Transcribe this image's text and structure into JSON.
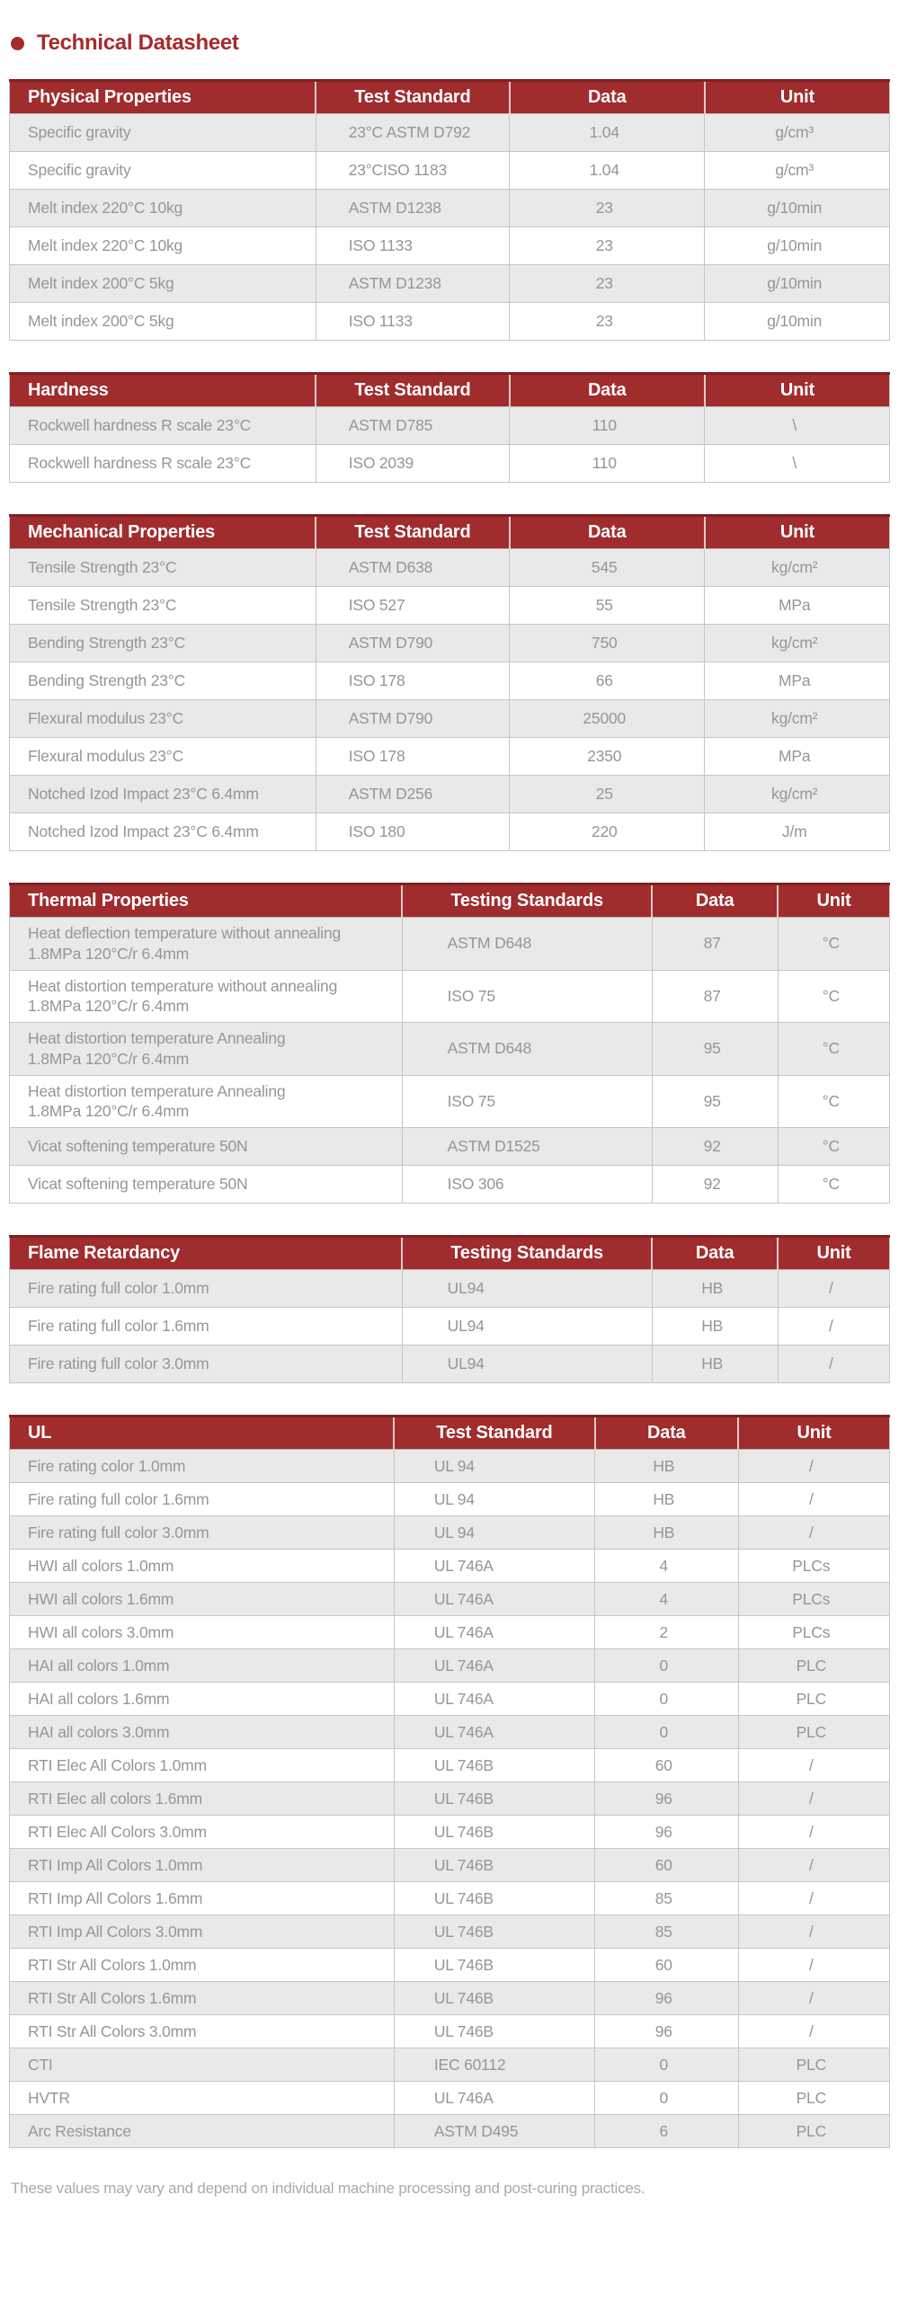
{
  "page": {
    "title": "Technical Datasheet",
    "footnote": "These values may vary and depend on individual machine processing and post-curing practices."
  },
  "colors": {
    "accent_red": "#A12C2D",
    "accent_red_dark": "#7E2122",
    "title_red": "#A8292C",
    "row_alt_gray": "#E9E9E9",
    "body_text_gray": "#969696",
    "border_gray": "#C6C6C6"
  },
  "tables": [
    {
      "name": "physical-properties",
      "columns": [
        "Physical Properties",
        "Test Standard",
        "Data",
        "Unit"
      ],
      "rows": [
        [
          "Specific gravity",
          "23°C ASTM D792",
          "1.04",
          "g/cm³"
        ],
        [
          "Specific gravity",
          "23°CISO 1183",
          "1.04",
          "g/cm³"
        ],
        [
          "Melt index 220°C 10kg",
          "ASTM D1238",
          "23",
          "g/10min"
        ],
        [
          "Melt index 220°C 10kg",
          "ISO 1133",
          "23",
          "g/10min"
        ],
        [
          "Melt index 200°C 5kg",
          "ASTM D1238",
          "23",
          "g/10min"
        ],
        [
          "Melt index 200°C 5kg",
          "ISO 1133",
          "23",
          "g/10min"
        ]
      ]
    },
    {
      "name": "hardness",
      "columns": [
        "Hardness",
        "Test Standard",
        "Data",
        "Unit"
      ],
      "rows": [
        [
          "Rockwell hardness R scale 23°C",
          "ASTM D785",
          "110",
          "\\"
        ],
        [
          "Rockwell hardness R scale 23°C",
          "ISO 2039",
          "110",
          "\\"
        ]
      ]
    },
    {
      "name": "mechanical-properties",
      "columns": [
        "Mechanical Properties",
        "Test Standard",
        "Data",
        "Unit"
      ],
      "rows": [
        [
          "Tensile Strength 23°C",
          "ASTM D638",
          "545",
          "kg/cm²"
        ],
        [
          "Tensile Strength 23°C",
          "ISO 527",
          "55",
          "MPa"
        ],
        [
          "Bending Strength 23°C",
          "ASTM D790",
          "750",
          "kg/cm²"
        ],
        [
          "Bending Strength 23°C",
          "ISO 178",
          "66",
          "MPa"
        ],
        [
          "Flexural modulus 23°C",
          "ASTM D790",
          "25000",
          "kg/cm²"
        ],
        [
          "Flexural modulus 23°C",
          "ISO 178",
          "2350",
          "MPa"
        ],
        [
          "Notched Izod Impact 23°C 6.4mm",
          "ASTM D256",
          "25",
          "kg/cm²"
        ],
        [
          "Notched Izod Impact 23°C 6.4mm",
          "ISO 180",
          "220",
          "J/m"
        ]
      ]
    },
    {
      "name": "thermal-properties",
      "columns": [
        "Thermal Properties",
        "Testing Standards",
        "Data",
        "Unit"
      ],
      "rows": [
        [
          "Heat deflection temperature without annealing\n1.8MPa 120°C/r 6.4mm",
          "ASTM D648",
          "87",
          "°C"
        ],
        [
          "Heat distortion temperature without annealing\n1.8MPa 120°C/r 6.4mm",
          "ISO 75",
          "87",
          "°C"
        ],
        [
          "Heat distortion temperature Annealing\n1.8MPa 120°C/r 6.4mm",
          "ASTM D648",
          "95",
          "°C"
        ],
        [
          "Heat distortion temperature Annealing\n1.8MPa 120°C/r 6.4mm",
          "ISO 75",
          "95",
          "°C"
        ],
        [
          "Vicat softening temperature 50N",
          "ASTM D1525",
          "92",
          "°C"
        ],
        [
          "Vicat softening temperature 50N",
          "ISO 306",
          "92",
          "°C"
        ]
      ]
    },
    {
      "name": "flame-retardancy",
      "columns": [
        "Flame Retardancy",
        "Testing Standards",
        "Data",
        "Unit"
      ],
      "rows": [
        [
          "Fire rating full color 1.0mm",
          "UL94",
          "HB",
          "/"
        ],
        [
          "Fire rating full color 1.6mm",
          "UL94",
          "HB",
          "/"
        ],
        [
          "Fire rating full color 3.0mm",
          "UL94",
          "HB",
          "/"
        ]
      ]
    },
    {
      "name": "ul",
      "columns": [
        "UL",
        "Test Standard",
        "Data",
        "Unit"
      ],
      "rows": [
        [
          "Fire rating color 1.0mm",
          "UL 94",
          "HB",
          "/"
        ],
        [
          "Fire rating full color 1.6mm",
          "UL 94",
          "HB",
          "/"
        ],
        [
          "Fire rating full color 3.0mm",
          "UL 94",
          "HB",
          "/"
        ],
        [
          "HWI all colors 1.0mm",
          "UL 746A",
          "4",
          "PLCs"
        ],
        [
          "HWI all colors 1.6mm",
          "UL 746A",
          "4",
          "PLCs"
        ],
        [
          "HWI all colors 3.0mm",
          "UL 746A",
          "2",
          "PLCs"
        ],
        [
          "HAI all colors 1.0mm",
          "UL 746A",
          "0",
          "PLC"
        ],
        [
          "HAI all colors 1.6mm",
          "UL 746A",
          "0",
          "PLC"
        ],
        [
          "HAI all colors 3.0mm",
          "UL 746A",
          "0",
          "PLC"
        ],
        [
          "RTI Elec All Colors 1.0mm",
          "UL 746B",
          "60",
          "/"
        ],
        [
          "RTI Elec all colors 1.6mm",
          "UL 746B",
          "96",
          "/"
        ],
        [
          "RTI Elec All Colors 3.0mm",
          "UL 746B",
          "96",
          "/"
        ],
        [
          "RTI Imp All Colors 1.0mm",
          "UL 746B",
          "60",
          "/"
        ],
        [
          "RTI Imp All Colors 1.6mm",
          "UL 746B",
          "85",
          "/"
        ],
        [
          "RTI Imp All Colors 3.0mm",
          "UL 746B",
          "85",
          "/"
        ],
        [
          "RTI Str All Colors 1.0mm",
          "UL 746B",
          "60",
          "/"
        ],
        [
          "RTI Str All Colors 1.6mm",
          "UL 746B",
          "96",
          "/"
        ],
        [
          "RTI Str All Colors 3.0mm",
          "UL 746B",
          "96",
          "/"
        ],
        [
          "CTI",
          "IEC 60112",
          "0",
          "PLC"
        ],
        [
          "HVTR",
          "UL 746A",
          "0",
          "PLC"
        ],
        [
          "Arc Resistance",
          "ASTM D495",
          "6",
          "PLC"
        ]
      ]
    }
  ]
}
